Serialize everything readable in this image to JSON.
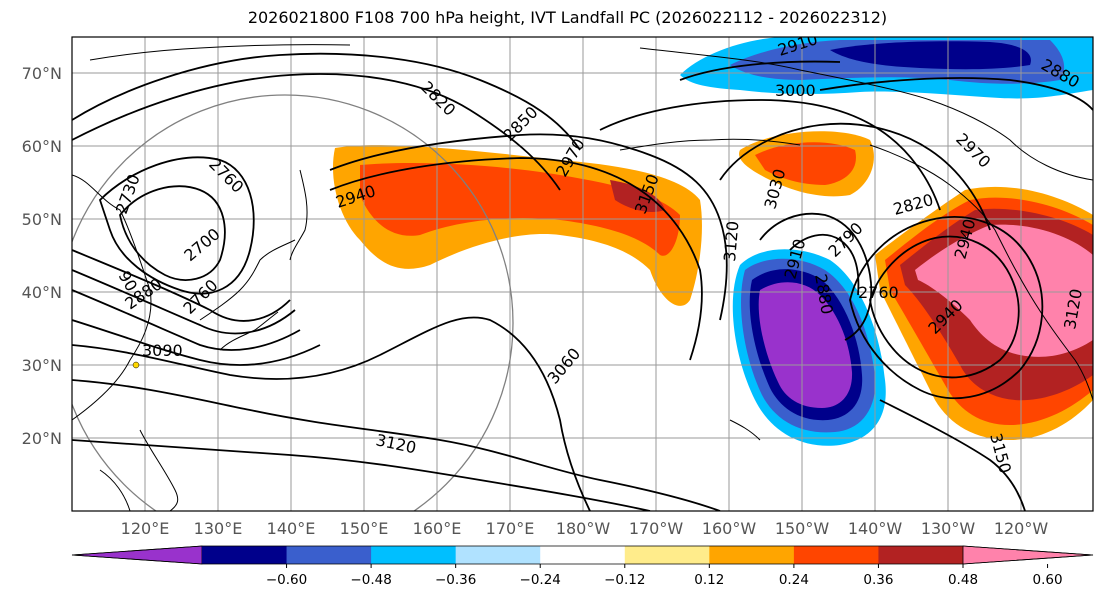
{
  "title": "2026021800 F108 700 hPa height, IVT Landfall PC (2026022112 - 2026022312)",
  "lat_labels": [
    "70°N",
    "60°N",
    "50°N",
    "40°N",
    "30°N",
    "20°N"
  ],
  "lon_labels": [
    "120°E",
    "130°E",
    "140°E",
    "150°E",
    "160°E",
    "170°E",
    "180°W",
    "170°W",
    "160°W",
    "150°W",
    "140°W",
    "130°W",
    "120°W"
  ],
  "colorbar": {
    "ticks": [
      "−0.60",
      "−0.48",
      "−0.36",
      "−0.24",
      "−0.12",
      "0.12",
      "0.24",
      "0.36",
      "0.48",
      "0.60"
    ],
    "colors": [
      "#9932cc",
      "#00008b",
      "#3a5fcd",
      "#00bfff",
      "#b0e2ff",
      "#ffffff",
      "#ffec8b",
      "#ffa500",
      "#ff4500",
      "#b22222",
      "#ff82ab"
    ]
  },
  "contour_labels": [
    "2910",
    "2940",
    "2880",
    "3000",
    "2820",
    "2850",
    "2970",
    "2760",
    "2730",
    "2940",
    "3150",
    "3030",
    "3120",
    "2970",
    "2820",
    "2790",
    "2910",
    "2760",
    "2700",
    "90",
    "2880",
    "3090",
    "2760",
    "3060",
    "2940",
    "3120",
    "3150",
    "2880",
    "3120"
  ]
}
